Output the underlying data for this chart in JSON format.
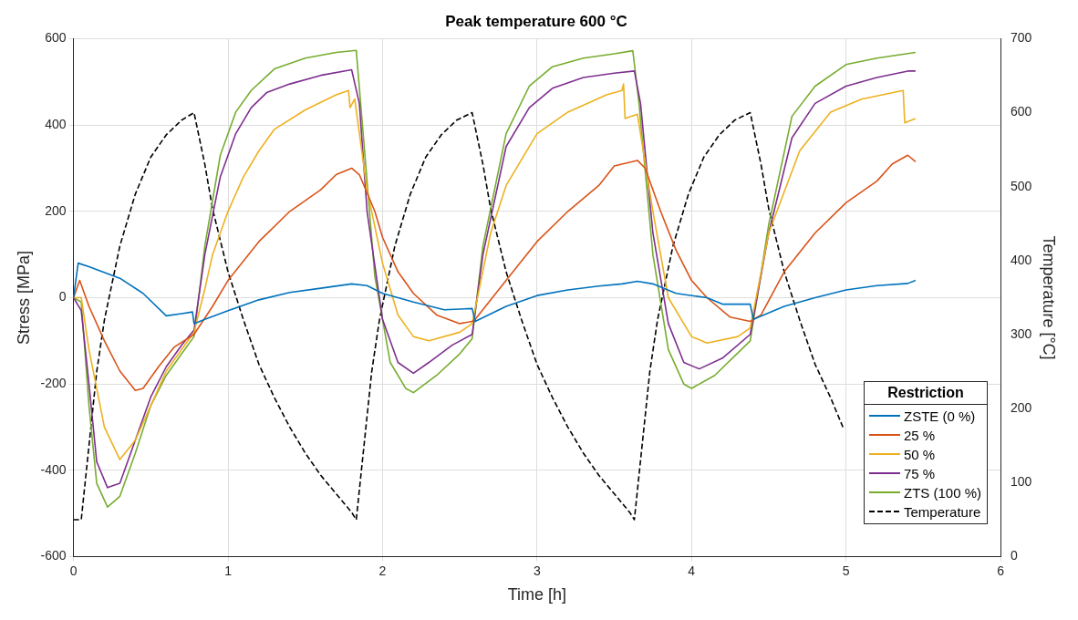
{
  "chart_data": {
    "type": "line",
    "title": "Peak temperature 600 °C",
    "xlabel": "Time [h]",
    "ylabel": "Stress [MPa]",
    "y2label": "Temperature [°C]",
    "legend_title": "Restriction",
    "legend": "bottom right",
    "grid": true,
    "marker": "none",
    "line_style": "solid",
    "xlim": [
      0,
      6
    ],
    "xticks": [
      0,
      1,
      2,
      3,
      4,
      5,
      6
    ],
    "ylim": [
      -600,
      600
    ],
    "yticks": [
      -600,
      -400,
      -200,
      0,
      200,
      400,
      600
    ],
    "y2lim": [
      0,
      700
    ],
    "y2ticks": [
      0,
      100,
      200,
      300,
      400,
      500,
      600,
      700
    ],
    "series": [
      {
        "name": "ZSTE (0 %)",
        "color": "#0072bd",
        "x": [
          0,
          0.03,
          0.1,
          0.3,
          0.45,
          0.6,
          0.7,
          0.77,
          0.78,
          0.85,
          1.0,
          1.2,
          1.4,
          1.6,
          1.8,
          1.9,
          2.0,
          2.2,
          2.4,
          2.58,
          2.6,
          2.8,
          3.0,
          3.2,
          3.4,
          3.55,
          3.65,
          3.75,
          3.9,
          4.1,
          4.2,
          4.38,
          4.4,
          4.6,
          4.8,
          5.0,
          5.2,
          5.4,
          5.45
        ],
        "values": [
          0,
          80,
          72,
          45,
          10,
          -42,
          -37,
          -33,
          -60,
          -50,
          -30,
          -5,
          12,
          22,
          32,
          28,
          10,
          -10,
          -28,
          -25,
          -55,
          -20,
          5,
          18,
          27,
          32,
          38,
          32,
          10,
          0,
          -15,
          -15,
          -50,
          -20,
          0,
          18,
          28,
          33,
          40
        ]
      },
      {
        "name": "25 %",
        "color": "#d95319",
        "x": [
          0,
          0.04,
          0.1,
          0.2,
          0.3,
          0.4,
          0.45,
          0.55,
          0.65,
          0.78,
          0.9,
          1.0,
          1.2,
          1.4,
          1.6,
          1.7,
          1.8,
          1.85,
          1.95,
          2.0,
          2.1,
          2.2,
          2.35,
          2.5,
          2.58,
          2.6,
          2.8,
          3.0,
          3.2,
          3.4,
          3.5,
          3.65,
          3.7,
          3.8,
          3.9,
          4.0,
          4.1,
          4.25,
          4.38,
          4.45,
          4.6,
          4.8,
          5.0,
          5.2,
          5.3,
          5.4,
          5.45
        ],
        "values": [
          0,
          40,
          -20,
          -100,
          -170,
          -215,
          -210,
          -160,
          -115,
          -85,
          -20,
          40,
          130,
          200,
          250,
          285,
          300,
          285,
          200,
          140,
          60,
          10,
          -40,
          -60,
          -55,
          -50,
          40,
          130,
          200,
          260,
          305,
          318,
          300,
          200,
          110,
          40,
          0,
          -45,
          -55,
          -40,
          60,
          150,
          220,
          270,
          310,
          330,
          315
        ]
      },
      {
        "name": "50 %",
        "color": "#edb120",
        "x": [
          0,
          0.05,
          0.1,
          0.2,
          0.3,
          0.4,
          0.5,
          0.6,
          0.7,
          0.78,
          0.85,
          0.9,
          1.0,
          1.1,
          1.2,
          1.3,
          1.5,
          1.7,
          1.78,
          1.79,
          1.82,
          1.9,
          2.0,
          2.1,
          2.2,
          2.3,
          2.5,
          2.58,
          2.7,
          2.8,
          3.0,
          3.2,
          3.45,
          3.55,
          3.56,
          3.57,
          3.65,
          3.75,
          3.85,
          4.0,
          4.1,
          4.3,
          4.38,
          4.5,
          4.7,
          4.9,
          5.1,
          5.37,
          5.38,
          5.45
        ],
        "values": [
          0,
          0,
          -120,
          -300,
          -375,
          -330,
          -250,
          -170,
          -120,
          -80,
          20,
          100,
          200,
          280,
          340,
          390,
          435,
          470,
          480,
          440,
          460,
          250,
          80,
          -40,
          -90,
          -100,
          -80,
          -60,
          150,
          260,
          380,
          430,
          470,
          480,
          495,
          415,
          425,
          200,
          0,
          -90,
          -105,
          -90,
          -70,
          150,
          340,
          430,
          460,
          480,
          405,
          415
        ]
      },
      {
        "name": "75 %",
        "color": "#7e2f8e",
        "x": [
          0,
          0.05,
          0.1,
          0.15,
          0.22,
          0.3,
          0.4,
          0.5,
          0.6,
          0.7,
          0.78,
          0.85,
          0.95,
          1.05,
          1.15,
          1.25,
          1.4,
          1.6,
          1.8,
          1.85,
          1.9,
          2.0,
          2.1,
          2.2,
          2.3,
          2.45,
          2.58,
          2.65,
          2.8,
          2.95,
          3.1,
          3.3,
          3.5,
          3.63,
          3.67,
          3.75,
          3.85,
          3.95,
          4.05,
          4.2,
          4.38,
          4.5,
          4.65,
          4.8,
          5.0,
          5.2,
          5.4,
          5.45
        ],
        "values": [
          0,
          -30,
          -200,
          -380,
          -440,
          -430,
          -330,
          -230,
          -160,
          -110,
          -75,
          100,
          280,
          380,
          440,
          475,
          495,
          515,
          528,
          450,
          200,
          -50,
          -150,
          -175,
          -150,
          -110,
          -85,
          100,
          350,
          440,
          485,
          510,
          520,
          525,
          450,
          150,
          -60,
          -150,
          -165,
          -140,
          -85,
          150,
          370,
          450,
          490,
          510,
          525,
          525
        ]
      },
      {
        "name": "ZTS (100 %)",
        "color": "#77ac30",
        "x": [
          0,
          0.05,
          0.1,
          0.15,
          0.22,
          0.3,
          0.4,
          0.5,
          0.6,
          0.7,
          0.78,
          0.85,
          0.95,
          1.05,
          1.15,
          1.3,
          1.5,
          1.7,
          1.83,
          1.87,
          1.95,
          2.05,
          2.15,
          2.2,
          2.35,
          2.5,
          2.58,
          2.65,
          2.8,
          2.95,
          3.1,
          3.3,
          3.5,
          3.62,
          3.66,
          3.75,
          3.85,
          3.95,
          4.0,
          4.15,
          4.38,
          4.5,
          4.65,
          4.8,
          5.0,
          5.2,
          5.45
        ],
        "values": [
          0,
          -10,
          -250,
          -430,
          -485,
          -460,
          -360,
          -250,
          -180,
          -130,
          -90,
          120,
          330,
          430,
          480,
          530,
          555,
          568,
          573,
          400,
          50,
          -150,
          -210,
          -220,
          -180,
          -130,
          -95,
          120,
          380,
          490,
          535,
          555,
          565,
          572,
          450,
          100,
          -120,
          -200,
          -210,
          -180,
          -100,
          170,
          420,
          490,
          540,
          555,
          568
        ]
      },
      {
        "name": "Temperature",
        "color": "#000000",
        "axis": "y2",
        "line_style": "dashed",
        "x": [
          0,
          0.05,
          0.1,
          0.15,
          0.2,
          0.3,
          0.4,
          0.5,
          0.6,
          0.7,
          0.78,
          0.85,
          0.9,
          1.0,
          1.1,
          1.2,
          1.3,
          1.4,
          1.5,
          1.6,
          1.7,
          1.8,
          1.83,
          1.88,
          1.93,
          1.98,
          2.08,
          2.18,
          2.28,
          2.38,
          2.48,
          2.58,
          2.65,
          2.7,
          2.8,
          2.9,
          3.0,
          3.1,
          3.2,
          3.3,
          3.4,
          3.5,
          3.6,
          3.63,
          3.68,
          3.73,
          3.78,
          3.88,
          3.98,
          4.08,
          4.18,
          4.28,
          4.38,
          4.45,
          4.5,
          4.6,
          4.7,
          4.8,
          4.9,
          4.98
        ],
        "values": [
          50,
          50,
          150,
          250,
          320,
          420,
          490,
          540,
          570,
          590,
          600,
          530,
          470,
          385,
          320,
          260,
          215,
          175,
          140,
          110,
          85,
          60,
          50,
          150,
          250,
          320,
          420,
          490,
          540,
          570,
          590,
          600,
          530,
          470,
          385,
          320,
          260,
          215,
          175,
          140,
          110,
          85,
          60,
          50,
          150,
          250,
          320,
          420,
          490,
          540,
          570,
          590,
          600,
          530,
          470,
          385,
          320,
          260,
          215,
          175
        ]
      }
    ]
  }
}
